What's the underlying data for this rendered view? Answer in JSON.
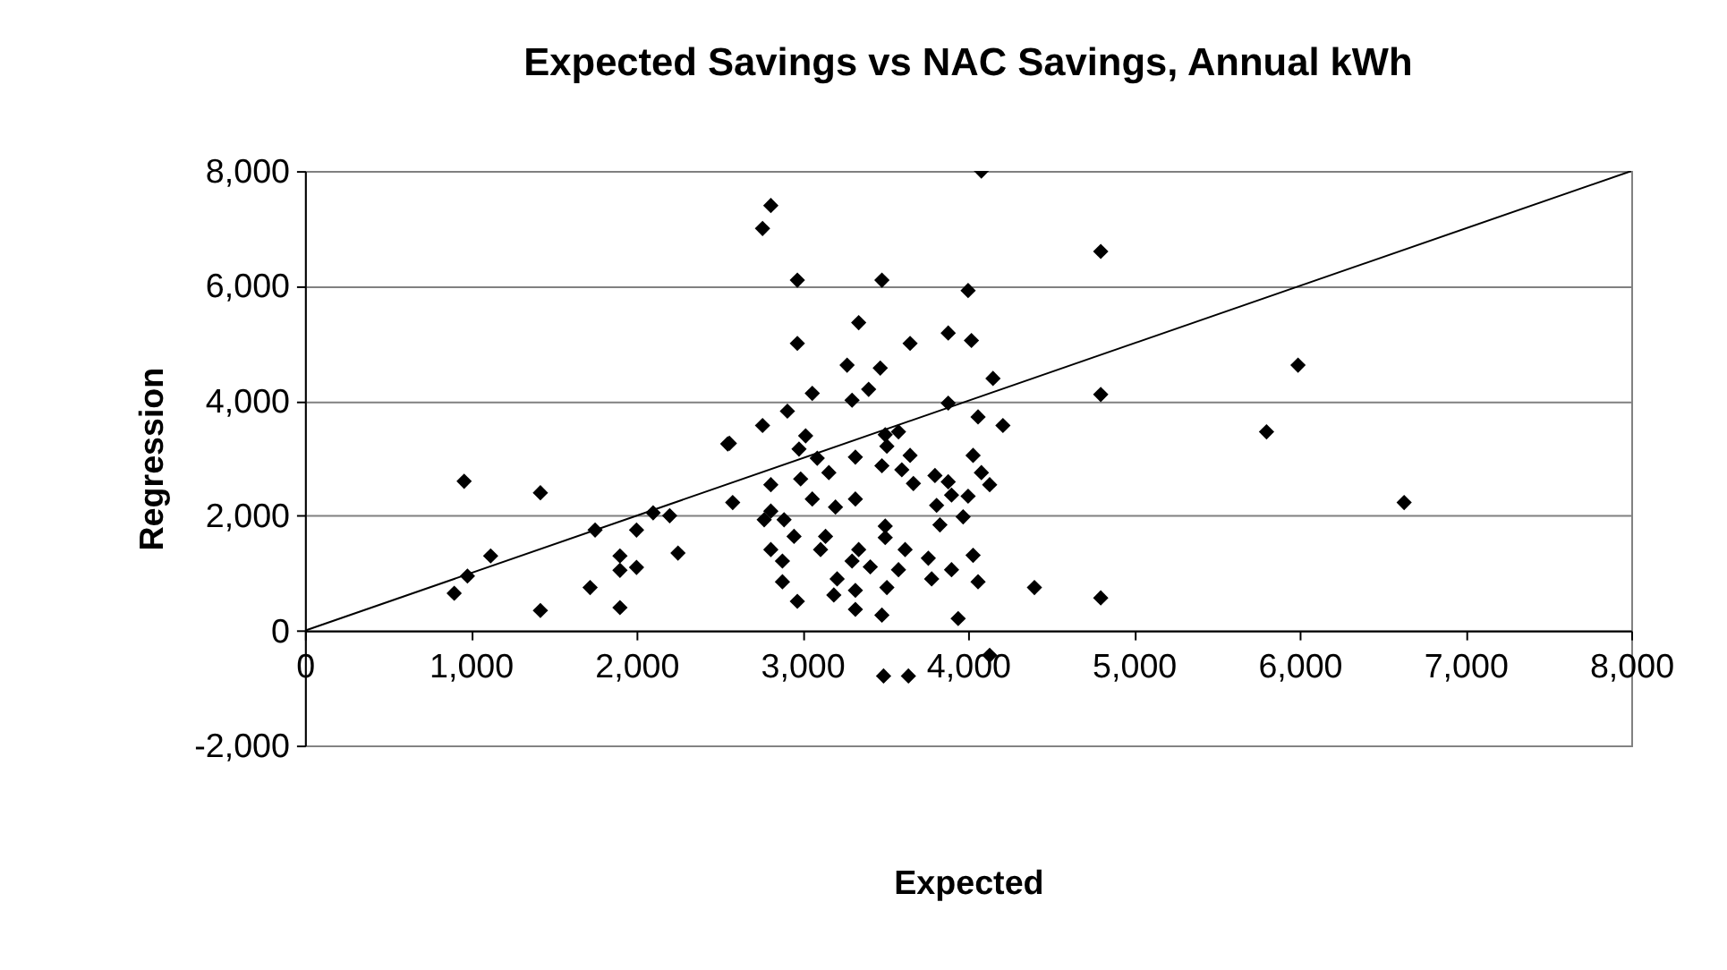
{
  "chart_data": {
    "type": "scatter",
    "title": "Expected Savings vs NAC Savings, Annual kWh",
    "xlabel": "Expected",
    "ylabel": "Regression",
    "xlim": [
      0,
      8000
    ],
    "xticks": [
      0,
      {
        "value": 1000,
        "label": "1,000"
      },
      {
        "value": 2000,
        "label": "2,000"
      },
      {
        "value": 3000,
        "label": "3,000"
      },
      {
        "value": 4000,
        "label": "4,000"
      },
      {
        "value": 5000,
        "label": "5,000"
      },
      {
        "value": 6000,
        "label": "6,000"
      },
      {
        "value": 7000,
        "label": "7,000"
      },
      {
        "value": 8000,
        "label": "8,000"
      }
    ],
    "ylim": [
      -2000,
      8000
    ],
    "yticks": [
      {
        "value": -2000,
        "label": "-2,000"
      },
      0,
      {
        "value": 2000,
        "label": "2,000"
      },
      {
        "value": 4000,
        "label": "4,000"
      },
      {
        "value": 6000,
        "label": "6,000"
      },
      {
        "value": 8000,
        "label": "8,000"
      }
    ],
    "grid": "y",
    "marker": "diamond",
    "series": [
      {
        "color": "#000000",
        "x": [
          900,
          960,
          980,
          1120,
          1420,
          1420,
          1720,
          1750,
          1900,
          1900,
          1900,
          2000,
          2000,
          2100,
          2200,
          2250,
          2550,
          4080,
          2810,
          2760,
          2970,
          3480,
          4000,
          3340,
          2970,
          3650,
          3880,
          4020,
          3270,
          3470,
          3060,
          3300,
          3400,
          4150,
          3880,
          4060,
          4210,
          2910,
          2760,
          2560,
          3020,
          2980,
          3090,
          3160,
          3320,
          3500,
          3580,
          3510,
          3650,
          3480,
          3600,
          3670,
          3800,
          3880,
          3900,
          4030,
          4080,
          4130,
          4000,
          3970,
          3810,
          3830,
          2810,
          2810,
          2580,
          2990,
          3060,
          3200,
          3320,
          2770,
          2890,
          2950,
          2810,
          2880,
          2880,
          2970,
          3140,
          3110,
          3340,
          3300,
          3410,
          3210,
          3190,
          3320,
          3320,
          3500,
          3500,
          3620,
          3580,
          3510,
          3480,
          3760,
          3780,
          3900,
          4030,
          4060,
          3940,
          4400,
          4130,
          3490,
          3640,
          4800,
          4800,
          4800,
          5800,
          5990,
          6630
        ],
        "values": [
          650,
          2600,
          950,
          1300,
          2400,
          350,
          750,
          1750,
          1300,
          1050,
          400,
          1750,
          1100,
          2050,
          2000,
          1350,
          3250,
          8000,
          7400,
          7000,
          6100,
          6100,
          5920,
          5360,
          5000,
          5000,
          5180,
          5050,
          4620,
          4570,
          4130,
          4010,
          4200,
          4390,
          3960,
          3720,
          3570,
          3820,
          3570,
          3260,
          3390,
          3160,
          3000,
          2750,
          3020,
          3410,
          3460,
          3210,
          3050,
          2870,
          2800,
          2560,
          2700,
          2590,
          2360,
          3050,
          2750,
          2540,
          2340,
          1980,
          2180,
          1840,
          2540,
          2080,
          2230,
          2640,
          2290,
          2150,
          2290,
          1930,
          1930,
          1640,
          1410,
          1210,
          850,
          510,
          1640,
          1410,
          1410,
          1210,
          1110,
          900,
          620,
          370,
          700,
          1820,
          1620,
          1410,
          1060,
          750,
          270,
          1260,
          900,
          1060,
          1310,
          850,
          210,
          750,
          -430,
          -790,
          -790,
          6600,
          4110,
          570,
          3460,
          4620,
          2230
        ]
      },
      {
        "type": "line",
        "marker": "none",
        "color": "#000000",
        "x": [
          0,
          8000
        ],
        "values": [
          0,
          8000
        ]
      }
    ]
  }
}
